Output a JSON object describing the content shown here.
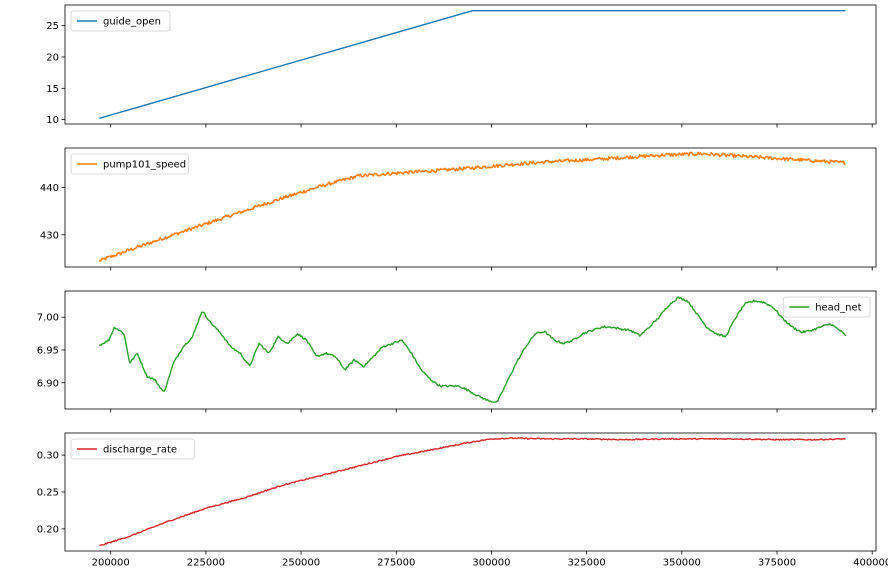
{
  "chart_data": [
    {
      "type": "line",
      "series": [
        {
          "name": "guide_open",
          "color": "#1f77b4"
        }
      ],
      "legend": "upper left",
      "x": [
        197000,
        295000,
        393000
      ],
      "values": [
        10.2,
        27.4,
        27.4
      ],
      "xlim": [
        188000,
        401000
      ],
      "ylim": [
        9.3,
        28.3
      ],
      "yticks": [
        10,
        15,
        20,
        25
      ],
      "ytick_labels": [
        "10",
        "15",
        "20",
        "25"
      ],
      "grid": false
    },
    {
      "type": "line",
      "series": [
        {
          "name": "pump101_speed",
          "color": "#ff7f0e"
        }
      ],
      "legend": "upper left",
      "x": [
        197000,
        205000,
        215000,
        225000,
        235000,
        245000,
        255000,
        265000,
        275000,
        285000,
        295000,
        305000,
        315000,
        325000,
        335000,
        345000,
        355000,
        365000,
        375000,
        385000,
        393000
      ],
      "values": [
        424.5,
        426.8,
        429.6,
        432.3,
        435.0,
        437.7,
        440.2,
        442.4,
        443.0,
        443.5,
        444.1,
        444.8,
        445.4,
        445.8,
        446.3,
        446.8,
        447.1,
        446.6,
        446.1,
        445.6,
        445.2
      ],
      "xlim": [
        188000,
        401000
      ],
      "ylim": [
        423.2,
        448.3
      ],
      "yticks": [
        430,
        440
      ],
      "ytick_labels": [
        "430",
        "440"
      ],
      "grid": false
    },
    {
      "type": "line",
      "series": [
        {
          "name": "head_net",
          "color": "#2ca02c"
        }
      ],
      "legend": "upper right",
      "x": [
        197000,
        199500,
        201000,
        203500,
        205000,
        207000,
        209500,
        211500,
        214000,
        216500,
        219000,
        221500,
        224000,
        226500,
        229000,
        231500,
        234000,
        236500,
        239000,
        241500,
        244000,
        246500,
        249000,
        251500,
        254000,
        256500,
        259000,
        261500,
        264000,
        266500,
        269000,
        271500,
        274000,
        276500,
        279000,
        281500,
        284000,
        286500,
        289000,
        291500,
        294000,
        296500,
        299000,
        301500,
        304000,
        306500,
        309000,
        311500,
        314000,
        316500,
        319000,
        321500,
        324000,
        326500,
        329000,
        331500,
        334000,
        336500,
        339000,
        341500,
        344000,
        346500,
        349000,
        351500,
        354000,
        356500,
        359000,
        361500,
        364000,
        366500,
        369000,
        371500,
        374000,
        376500,
        379000,
        381500,
        384000,
        386500,
        389000,
        391500,
        393000
      ],
      "values": [
        6.957,
        6.965,
        6.985,
        6.975,
        6.93,
        6.945,
        6.91,
        6.905,
        6.885,
        6.93,
        6.955,
        6.97,
        7.01,
        6.99,
        6.975,
        6.955,
        6.945,
        6.925,
        6.96,
        6.945,
        6.97,
        6.96,
        6.975,
        6.965,
        6.94,
        6.945,
        6.94,
        6.92,
        6.935,
        6.925,
        6.94,
        6.955,
        6.96,
        6.965,
        6.945,
        6.92,
        6.905,
        6.895,
        6.895,
        6.895,
        6.888,
        6.88,
        6.873,
        6.87,
        6.9,
        6.93,
        6.955,
        6.975,
        6.978,
        6.965,
        6.96,
        6.965,
        6.975,
        6.98,
        6.985,
        6.985,
        6.982,
        6.98,
        6.972,
        6.985,
        7.0,
        7.018,
        7.03,
        7.025,
        7.005,
        6.985,
        6.975,
        6.97,
        6.998,
        7.02,
        7.025,
        7.023,
        7.015,
        6.998,
        6.985,
        6.977,
        6.98,
        6.985,
        6.99,
        6.98,
        6.972
      ],
      "xlim": [
        188000,
        401000
      ],
      "ylim": [
        6.86,
        7.04
      ],
      "yticks": [
        6.9,
        6.95,
        7.0
      ],
      "ytick_labels": [
        "6.90",
        "6.95",
        "7.00"
      ],
      "grid": false
    },
    {
      "type": "line",
      "series": [
        {
          "name": "discharge_rate",
          "color": "#d62728"
        }
      ],
      "legend": "upper left",
      "x": [
        197000,
        205000,
        215000,
        225000,
        235000,
        245000,
        255000,
        265000,
        275000,
        285000,
        295000,
        300000,
        305000,
        315000,
        325000,
        335000,
        345000,
        355000,
        365000,
        375000,
        385000,
        393000
      ],
      "values": [
        0.177,
        0.19,
        0.21,
        0.228,
        0.242,
        0.259,
        0.272,
        0.285,
        0.298,
        0.308,
        0.318,
        0.322,
        0.323,
        0.322,
        0.322,
        0.321,
        0.322,
        0.322,
        0.322,
        0.321,
        0.321,
        0.322
      ],
      "xlim": [
        188000,
        401000
      ],
      "ylim": [
        0.17,
        0.33
      ],
      "yticks": [
        0.2,
        0.25,
        0.3
      ],
      "ytick_labels": [
        "0.20",
        "0.25",
        "0.30"
      ],
      "xticks": [
        200000,
        225000,
        250000,
        275000,
        300000,
        325000,
        350000,
        375000,
        400000
      ],
      "xtick_labels": [
        "200000",
        "225000",
        "250000",
        "275000",
        "300000",
        "325000",
        "350000",
        "375000",
        "400000"
      ],
      "grid": false
    }
  ]
}
